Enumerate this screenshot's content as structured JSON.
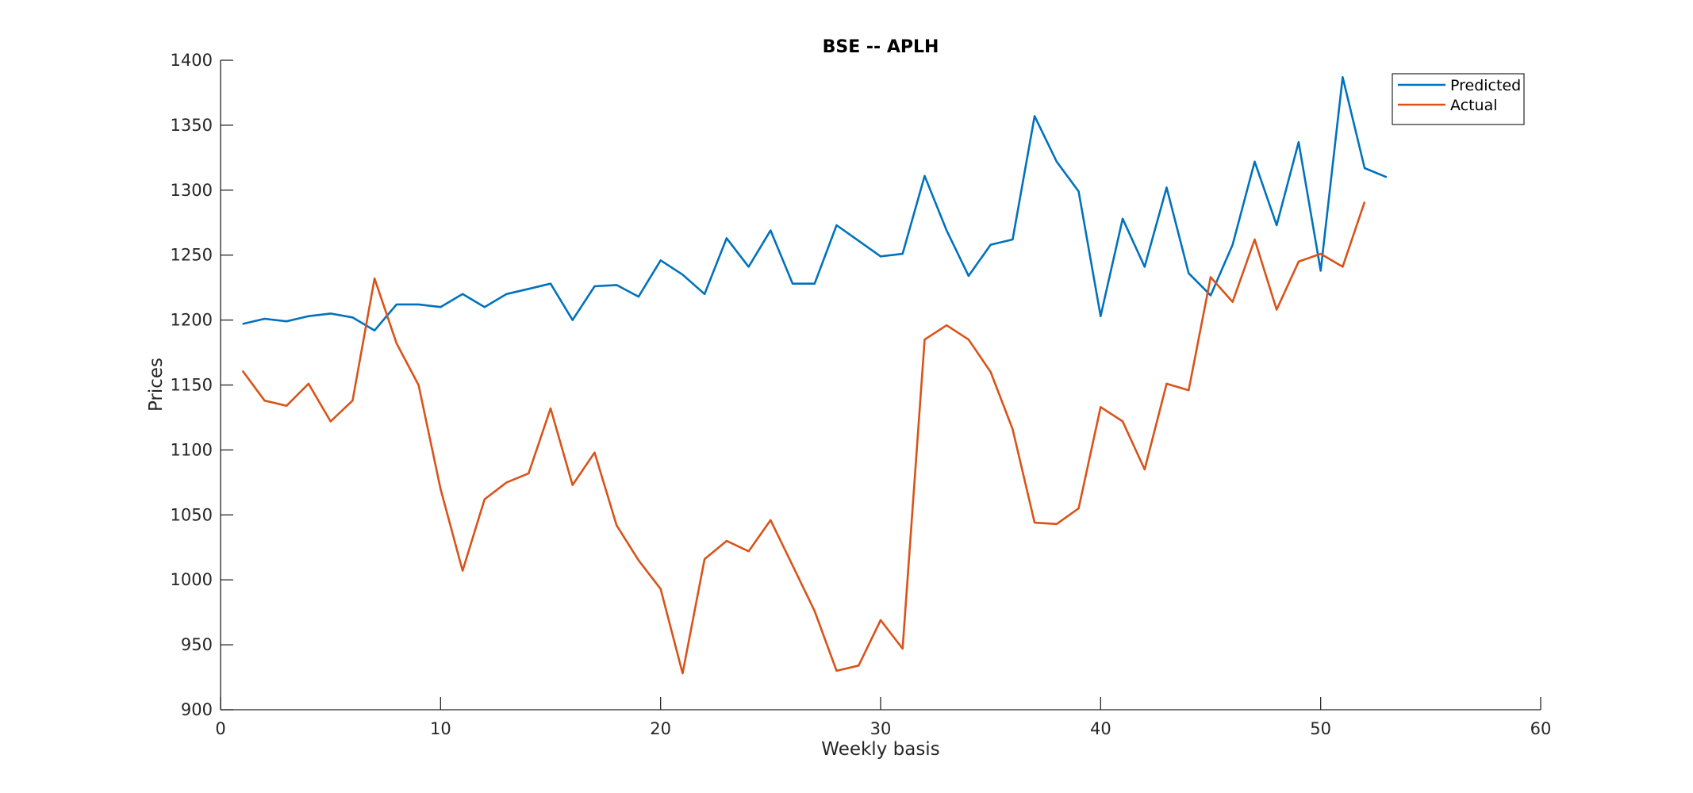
{
  "chart_data": {
    "type": "line",
    "title": "BSE -- APLH",
    "xlabel": "Weekly basis",
    "ylabel": "Prices",
    "xlim": [
      0,
      60
    ],
    "ylim": [
      900,
      1400
    ],
    "xticks": [
      0,
      10,
      20,
      30,
      40,
      50,
      60
    ],
    "yticks": [
      900,
      950,
      1000,
      1050,
      1100,
      1150,
      1200,
      1250,
      1300,
      1350,
      1400
    ],
    "grid": false,
    "legend_position": "top-right",
    "series": [
      {
        "name": "Predicted",
        "color": "#0072BD",
        "x": [
          1,
          2,
          3,
          4,
          5,
          6,
          7,
          8,
          9,
          10,
          11,
          12,
          13,
          14,
          15,
          16,
          17,
          18,
          19,
          20,
          21,
          22,
          23,
          24,
          25,
          26,
          27,
          28,
          29,
          30,
          31,
          32,
          33,
          34,
          35,
          36,
          37,
          38,
          39,
          40,
          41,
          42,
          43,
          44,
          45,
          46,
          47,
          48,
          49,
          50,
          51,
          52,
          53
        ],
        "values": [
          1197,
          1201,
          1199,
          1203,
          1205,
          1202,
          1192,
          1212,
          1212,
          1210,
          1220,
          1210,
          1220,
          1224,
          1228,
          1200,
          1226,
          1227,
          1218,
          1246,
          1235,
          1220,
          1263,
          1241,
          1269,
          1228,
          1228,
          1273,
          1261,
          1249,
          1251,
          1311,
          1269,
          1234,
          1258,
          1262,
          1357,
          1322,
          1299,
          1203,
          1278,
          1241,
          1302,
          1236,
          1219,
          1258,
          1322,
          1273,
          1337,
          1238,
          1387,
          1317,
          1310
        ]
      },
      {
        "name": "Actual",
        "color": "#D95319",
        "x": [
          1,
          2,
          3,
          4,
          5,
          6,
          7,
          8,
          9,
          10,
          11,
          12,
          13,
          14,
          15,
          16,
          17,
          18,
          19,
          20,
          21,
          22,
          23,
          24,
          25,
          26,
          27,
          28,
          29,
          30,
          31,
          32,
          33,
          34,
          35,
          36,
          37,
          38,
          39,
          40,
          41,
          42,
          43,
          44,
          45,
          46,
          47,
          48,
          49,
          50,
          51,
          52
        ],
        "values": [
          1161,
          1138,
          1134,
          1151,
          1122,
          1138,
          1232,
          1182,
          1150,
          1070,
          1007,
          1062,
          1075,
          1082,
          1132,
          1073,
          1098,
          1042,
          1015,
          993,
          928,
          1016,
          1030,
          1022,
          1046,
          1011,
          976,
          930,
          934,
          969,
          947,
          1185,
          1196,
          1185,
          1160,
          1116,
          1044,
          1043,
          1055,
          1133,
          1122,
          1085,
          1151,
          1146,
          1233,
          1214,
          1262,
          1208,
          1245,
          1251,
          1241,
          1291
        ]
      }
    ]
  }
}
